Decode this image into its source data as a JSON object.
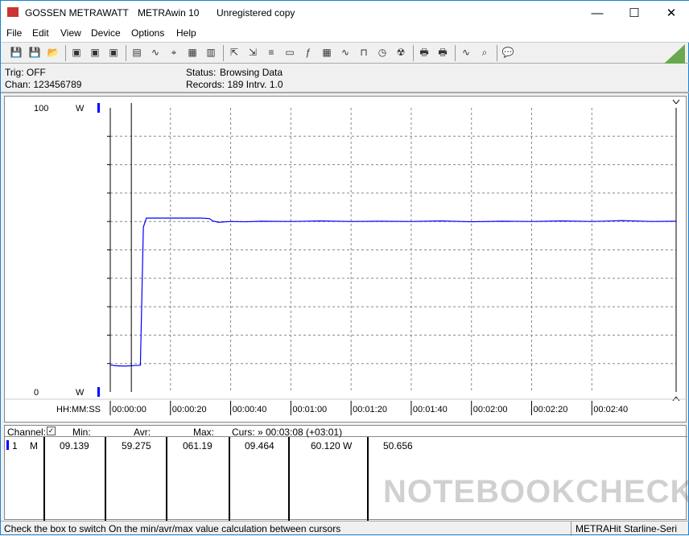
{
  "window": {
    "app": "GOSSEN METRAWATT",
    "product": "METRAwin 10",
    "license": "Unregistered copy"
  },
  "menu": [
    "File",
    "Edit",
    "View",
    "Device",
    "Options",
    "Help"
  ],
  "toolbar_icons": [
    "save-icon",
    "save-as-icon",
    "open-icon",
    "device-read-icon",
    "device-stop-icon",
    "device-memory-icon",
    "list-icon",
    "chart-icon",
    "crosshair-icon",
    "table-icon",
    "bar-icon",
    "export-icon",
    "import-icon",
    "data-icon",
    "monitor-icon",
    "function-icon",
    "calc-icon",
    "wave-icon",
    "pulse-icon",
    "clock-icon",
    "trigger-icon",
    "print-icon",
    "print-preview-icon",
    "zoom-wave-icon",
    "zoom-icon",
    "comment-icon"
  ],
  "info": {
    "trig": "Trig: OFF",
    "chan": "Chan:  123456789",
    "status_label": "Status:",
    "status": "Browsing Data",
    "records": "Records: 189  Intrv. 1.0"
  },
  "chart_data": {
    "type": "line",
    "ylim": [
      0,
      100
    ],
    "yunit": "W",
    "ytick_labels": [
      "100",
      "0"
    ],
    "xlabel": "HH:MM:SS",
    "xtick_labels": [
      "00:00:00",
      "00:00:20",
      "00:00:40",
      "00:01:00",
      "00:01:20",
      "00:01:40",
      "00:02:00",
      "00:02:20",
      "00:02:40"
    ],
    "xlim_seconds": [
      0,
      188
    ],
    "grid": true,
    "series": [
      {
        "color": "#0000ff",
        "x": [
          0,
          2,
          5,
          8,
          10,
          11,
          12,
          20,
          30,
          33,
          34,
          36,
          40,
          45,
          50,
          60,
          70,
          80,
          90,
          100,
          110,
          120,
          130,
          140,
          150,
          160,
          170,
          180,
          188
        ],
        "y": [
          9.5,
          9.2,
          9.1,
          9.3,
          9.4,
          58,
          61.2,
          61.2,
          61.2,
          61.0,
          60.2,
          59.7,
          60.0,
          59.9,
          60.1,
          60.0,
          60.2,
          60.0,
          60.1,
          60.0,
          60.2,
          59.9,
          60.1,
          60.0,
          60.2,
          60.0,
          60.3,
          60.0,
          60.1
        ]
      }
    ],
    "cursor_seconds": 7
  },
  "table": {
    "channel_label": "Channel:",
    "min_label": "Min:",
    "avr_label": "Avr:",
    "max_label": "Max:",
    "curs": "Curs: » 00:03:08 (+03:01)",
    "row": {
      "ch": "1",
      "mode": "M",
      "min": "09.139",
      "avr": "59.275",
      "max": "061.19",
      "c1": "09.464",
      "c2": "60.120",
      "unit": "W",
      "c3": "50.656"
    }
  },
  "watermark": "NOTEBOOKCHECK",
  "statusbar": {
    "hint": "Check the box to switch On the min/avr/max value calculation between cursors",
    "device": "METRAHit Starline-Seri"
  }
}
